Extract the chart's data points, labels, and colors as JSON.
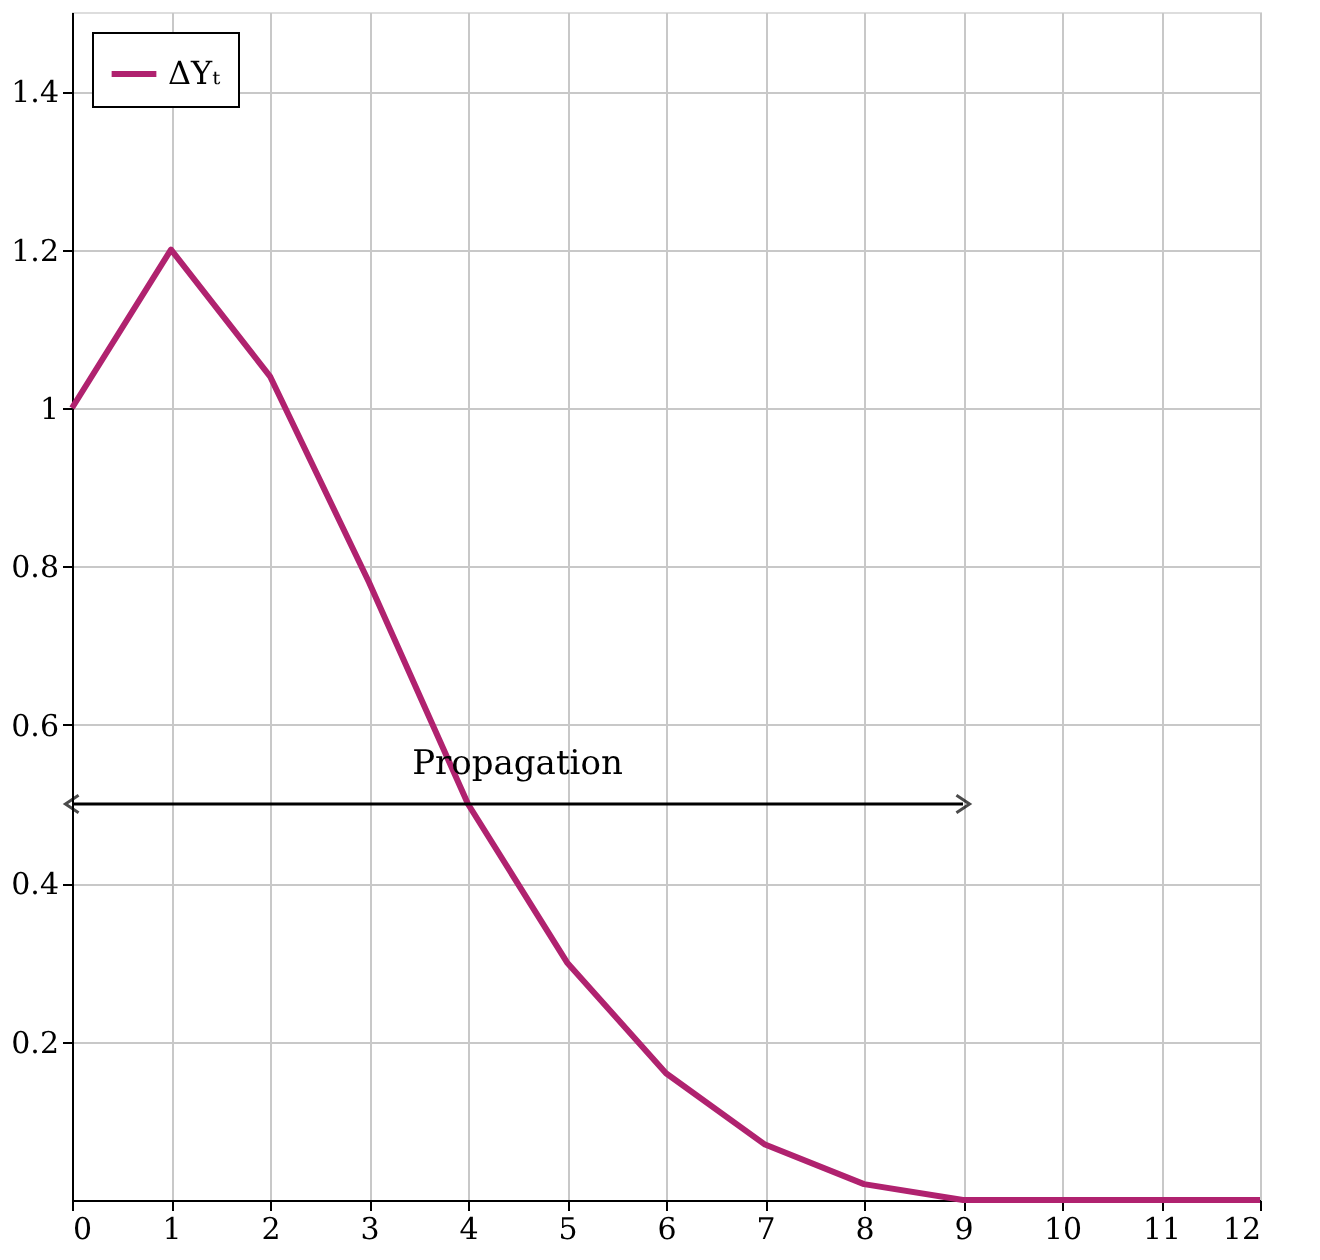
{
  "chart_data": {
    "type": "line",
    "x": [
      0,
      1,
      2,
      3,
      4,
      5,
      6,
      7,
      8,
      9,
      10,
      11,
      12
    ],
    "series": [
      {
        "name": "ΔYₜ",
        "color": "#b0226f",
        "values": [
          1,
          1.2,
          1.04,
          0.78,
          0.5,
          0.3,
          0.16,
          0.07,
          0.02,
          0,
          0,
          0,
          0
        ]
      },
      {
        "color": "#000000",
        "marker": "cross",
        "x": [
          0,
          9
        ],
        "values": [
          0.5,
          0.5
        ]
      }
    ],
    "xlim": [
      0,
      12
    ],
    "xticks": [
      0,
      1,
      2,
      3,
      4,
      5,
      6,
      7,
      8,
      9,
      10,
      11,
      12
    ],
    "ylim": [
      0,
      1.5
    ],
    "yticks": [
      0.2,
      0.4,
      0.6,
      0.8,
      1,
      1.2,
      1.4
    ],
    "grid": true,
    "legend": "top left",
    "marker": "none",
    "line_style": "solid",
    "annotations": [
      "Propagation"
    ]
  }
}
